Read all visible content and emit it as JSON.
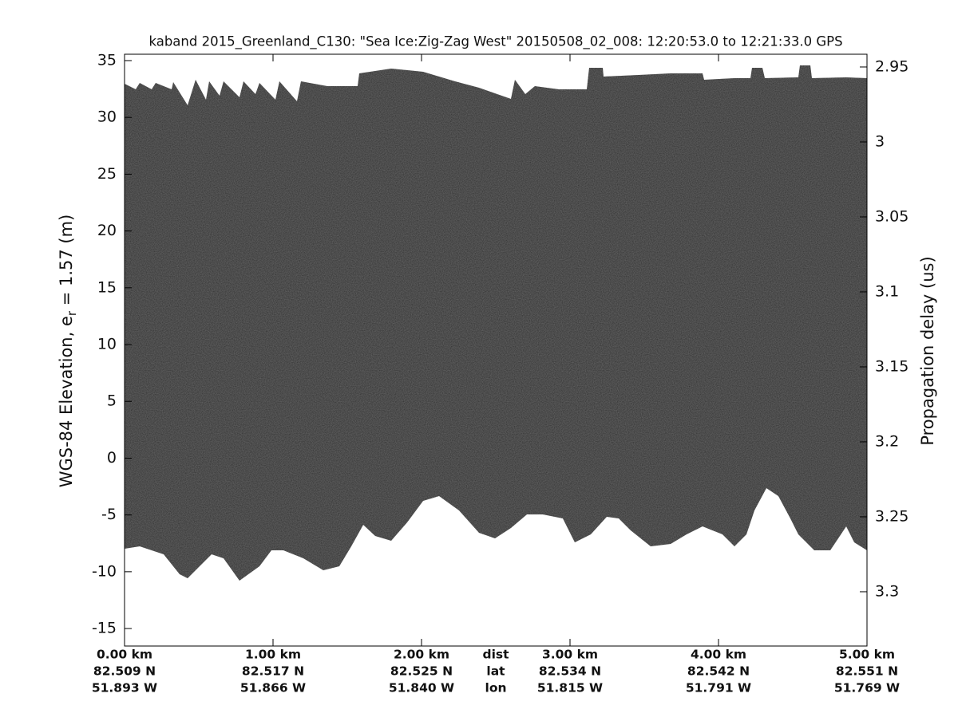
{
  "chart_data": {
    "type": "echogram",
    "title": "kaband 2015_Greenland_C130: \"Sea Ice:Zig-Zag West\"  20150508_02_008: 12:20:53.0 to 12:21:33.0 GPS",
    "ylabel": "WGS-84 Elevation, e",
    "ylabel_subscript": "r",
    "ylabel_suffix": " = 1.57 (m)",
    "y2label": "Propagation delay (us)",
    "xlim": [
      0,
      5
    ],
    "xticks": [
      {
        "value": 0,
        "label": "0.00 km"
      },
      {
        "value": 1,
        "label": "1.00 km"
      },
      {
        "value": 2,
        "label": "2.00 km"
      },
      {
        "value": 3,
        "label": "3.00 km"
      },
      {
        "value": 4,
        "label": "4.00 km"
      },
      {
        "value": 5,
        "label": "5.00 km"
      }
    ],
    "lat_labels": [
      "82.509 N",
      "82.517 N",
      "82.525 N",
      "82.534 N",
      "82.542 N",
      "82.551 N"
    ],
    "lon_labels": [
      "51.893 W",
      "51.866 W",
      "51.840 W",
      "51.815 W",
      "51.791 W",
      "51.769 W"
    ],
    "row_labels": [
      "dist",
      "lat",
      "lon"
    ],
    "ylim": [
      -16.54,
      35.56
    ],
    "yticks": [
      -15,
      -10,
      -5,
      0,
      5,
      10,
      15,
      20,
      25,
      30,
      35
    ],
    "y2lim": [
      3.3362,
      2.9415
    ],
    "y2ticks": [
      2.95,
      3,
      3.05,
      3.1,
      3.15,
      3.2,
      3.25,
      3.3
    ]
  }
}
